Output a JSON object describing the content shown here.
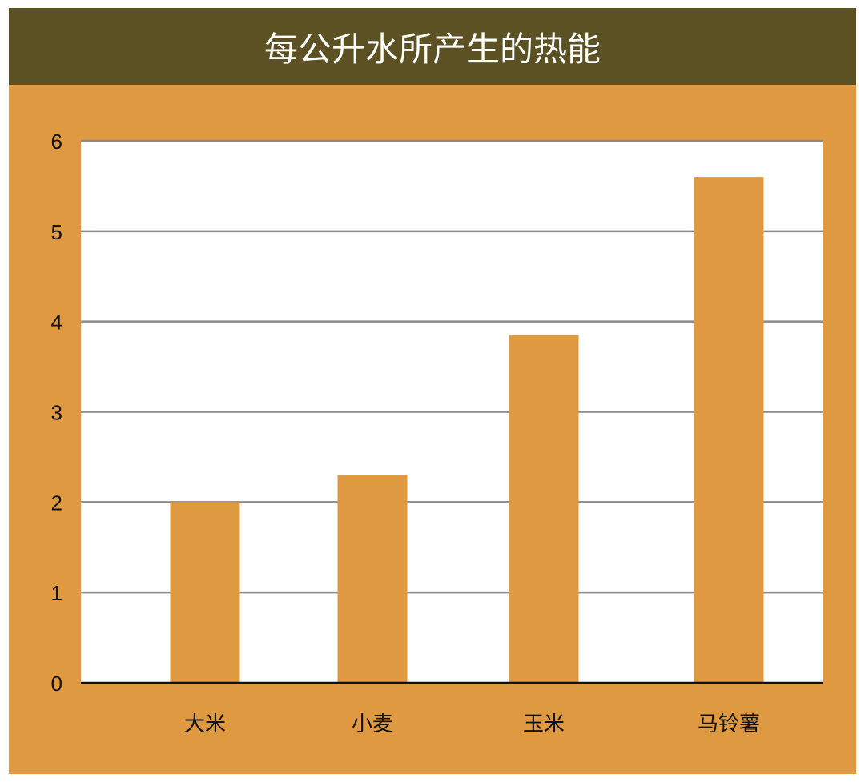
{
  "colors": {
    "frame": "#df9940",
    "title_bar": "#5b5122",
    "plot_bg": "#ffffff",
    "bar": "#df9940",
    "grid": "#8a8a8a",
    "axis": "#111111"
  },
  "chart_data": {
    "type": "bar",
    "title": "每公升水所产生的热能",
    "xlabel": "",
    "ylabel": "",
    "categories": [
      "大米",
      "小麦",
      "玉米",
      "马铃薯"
    ],
    "values": [
      2.0,
      2.3,
      3.85,
      5.6
    ],
    "ylim": [
      0,
      6
    ],
    "yticks": [
      0,
      1,
      2,
      3,
      4,
      5,
      6
    ],
    "ytick_labels": [
      "0",
      "1",
      "2",
      "3",
      "4",
      "5",
      "6"
    ],
    "grid": true,
    "legend": "none"
  }
}
